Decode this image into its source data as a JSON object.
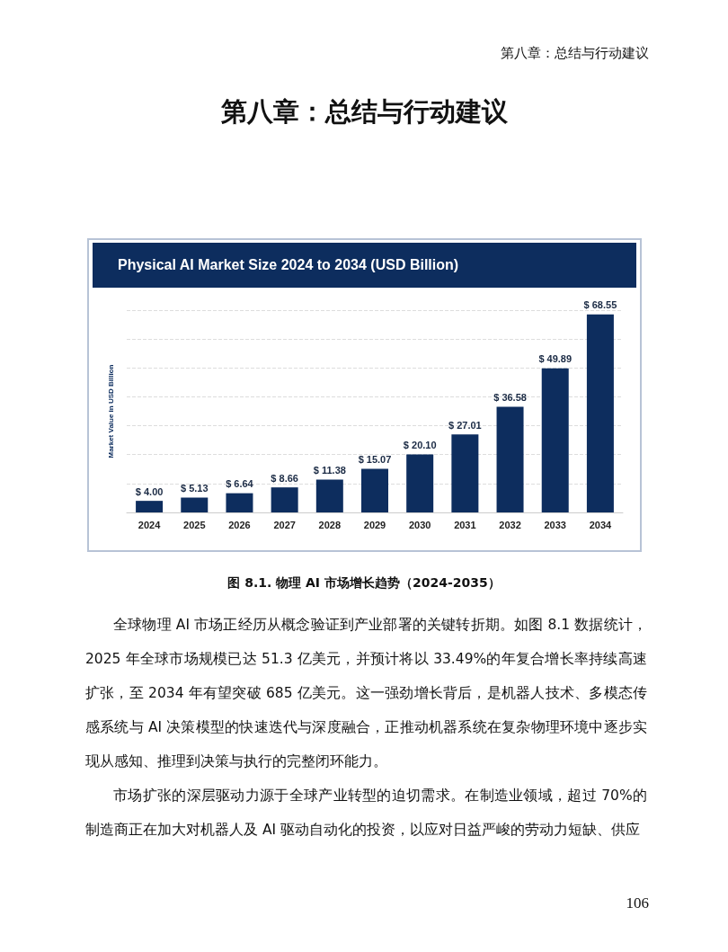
{
  "chart_data": {
    "type": "bar",
    "title": "Physical AI Market Size 2024 to 2034 (USD Billion)",
    "ylabel": "Market Value in USD Billion",
    "categories": [
      "2024",
      "2025",
      "2026",
      "2027",
      "2028",
      "2029",
      "2030",
      "2031",
      "2032",
      "2033",
      "2034"
    ],
    "values": [
      4.0,
      5.13,
      6.64,
      8.66,
      11.38,
      15.07,
      20.1,
      27.01,
      36.58,
      49.89,
      68.55
    ],
    "value_labels": [
      "$ 4.00",
      "$ 5.13",
      "$ 6.64",
      "$ 8.66",
      "$ 11.38",
      "$ 15.07",
      "$ 20.10",
      "$ 27.01",
      "$ 36.58",
      "$ 49.89",
      "$ 68.55"
    ],
    "color": "#0d2d5e",
    "grid": "y",
    "annotations": [
      "第八章：总结与行动建议",
      "第八章：总结与行动建议",
      "图 8.1. 物理 AI 市场增长趋势（2024-2035）",
      "全球物理 AI 市场正经历从概念验证到产业部署的关键转折期。如图 8.1 数据统计，2025 年全球市场规模已达 51.3 亿美元，并预计将以 33.49%的年复合增长率持续高速扩张，至 2034 年有望突破 685 亿美元。这一强劲增长背后，是机器人技术、多模态传感系统与 AI 决策模型的快速迭代与深度融合，正推动机器系统在复杂物理环境中逐步实现从感知、推理到决策与执行的完整闭环能力。",
      "市场扩张的深层驱动力源于全球产业转型的迫切需求。在制造业领域，超过 70%的制造商正在加大对机器人及 AI 驱动自动化的投资，以应对日益严峻的劳动力短缺、供应",
      "106"
    ]
  }
}
